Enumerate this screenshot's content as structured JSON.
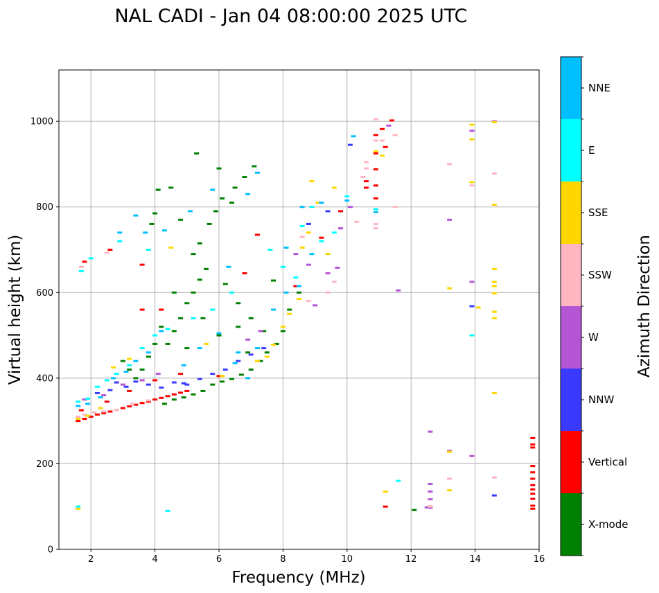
{
  "chart_data": {
    "type": "scatter",
    "title": "NAL CADI - Jan 04 08:00:00 2025 UTC",
    "xlabel": "Frequency (MHz)",
    "ylabel": "Virtual height (km)",
    "xlim": [
      1,
      16
    ],
    "ylim": [
      0,
      1120
    ],
    "xticks": [
      2,
      4,
      6,
      8,
      10,
      12,
      14,
      16
    ],
    "yticks": [
      0,
      200,
      400,
      600,
      800,
      1000
    ],
    "grid": true,
    "colorbar": {
      "label": "Azimuth Direction",
      "categories": [
        {
          "name": "X-mode",
          "color": "#008000"
        },
        {
          "name": "Vertical",
          "color": "#ff0000"
        },
        {
          "name": "NNW",
          "color": "#3a3aff"
        },
        {
          "name": "W",
          "color": "#b455d4"
        },
        {
          "name": "SSW",
          "color": "#ffb6c1"
        },
        {
          "name": "SSE",
          "color": "#ffd700"
        },
        {
          "name": "E",
          "color": "#00ffff"
        },
        {
          "name": "NNE",
          "color": "#00bfff"
        }
      ]
    },
    "series": [
      {
        "name": "Vertical",
        "points": [
          [
            1.6,
            300
          ],
          [
            1.8,
            305
          ],
          [
            2.0,
            310
          ],
          [
            2.2,
            315
          ],
          [
            2.4,
            318
          ],
          [
            2.6,
            322
          ],
          [
            2.8,
            326
          ],
          [
            3.0,
            330
          ],
          [
            3.2,
            334
          ],
          [
            3.4,
            338
          ],
          [
            3.6,
            342
          ],
          [
            3.8,
            345
          ],
          [
            4.0,
            350
          ],
          [
            4.2,
            354
          ],
          [
            4.4,
            358
          ],
          [
            4.6,
            362
          ],
          [
            4.8,
            366
          ],
          [
            5.0,
            370
          ],
          [
            1.7,
            325
          ],
          [
            2.5,
            345
          ],
          [
            3.2,
            370
          ],
          [
            4.0,
            395
          ],
          [
            4.8,
            410
          ],
          [
            6.0,
            405
          ],
          [
            3.6,
            560
          ],
          [
            4.2,
            560
          ],
          [
            1.8,
            672
          ],
          [
            2.6,
            700
          ],
          [
            3.6,
            665
          ],
          [
            6.8,
            645
          ],
          [
            7.2,
            735
          ],
          [
            8.4,
            615
          ],
          [
            9.2,
            728
          ],
          [
            9.8,
            790
          ],
          [
            10.6,
            860
          ],
          [
            10.6,
            845
          ],
          [
            10.9,
            850
          ],
          [
            10.9,
            820
          ],
          [
            10.9,
            888
          ],
          [
            10.9,
            925
          ],
          [
            10.9,
            968
          ],
          [
            11.1,
            982
          ],
          [
            11.4,
            1002
          ],
          [
            15.8,
            260
          ],
          [
            15.8,
            245
          ],
          [
            15.8,
            238
          ],
          [
            15.8,
            195
          ],
          [
            15.8,
            180
          ],
          [
            15.8,
            165
          ],
          [
            15.8,
            150
          ],
          [
            15.8,
            140
          ],
          [
            15.8,
            130
          ],
          [
            15.8,
            118
          ],
          [
            15.8,
            102
          ],
          [
            15.8,
            95
          ],
          [
            11.2,
            100
          ],
          [
            12.6,
            100
          ],
          [
            11.2,
            940
          ]
        ]
      },
      {
        "name": "X-mode",
        "points": [
          [
            4.3,
            340
          ],
          [
            4.6,
            350
          ],
          [
            4.9,
            355
          ],
          [
            5.2,
            362
          ],
          [
            5.5,
            370
          ],
          [
            5.8,
            385
          ],
          [
            6.1,
            392
          ],
          [
            6.4,
            398
          ],
          [
            6.7,
            408
          ],
          [
            7.0,
            420
          ],
          [
            7.3,
            440
          ],
          [
            7.5,
            460
          ],
          [
            7.8,
            480
          ],
          [
            8.0,
            510
          ],
          [
            4.4,
            480
          ],
          [
            4.6,
            510
          ],
          [
            4.8,
            540
          ],
          [
            5.0,
            575
          ],
          [
            5.2,
            600
          ],
          [
            5.4,
            630
          ],
          [
            5.6,
            655
          ],
          [
            5.2,
            690
          ],
          [
            5.4,
            715
          ],
          [
            5.7,
            760
          ],
          [
            5.9,
            790
          ],
          [
            6.1,
            820
          ],
          [
            6.5,
            845
          ],
          [
            6.8,
            870
          ],
          [
            7.1,
            895
          ],
          [
            3.6,
            420
          ],
          [
            3.8,
            450
          ],
          [
            4.0,
            480
          ],
          [
            4.2,
            520
          ],
          [
            3.9,
            760
          ],
          [
            4.0,
            785
          ],
          [
            4.1,
            840
          ],
          [
            4.5,
            845
          ],
          [
            4.8,
            770
          ],
          [
            4.6,
            600
          ],
          [
            5.0,
            470
          ],
          [
            5.5,
            540
          ],
          [
            6.0,
            500
          ],
          [
            6.2,
            620
          ],
          [
            6.6,
            575
          ],
          [
            7.0,
            540
          ],
          [
            7.4,
            510
          ],
          [
            7.7,
            628
          ],
          [
            8.2,
            560
          ],
          [
            8.5,
            600
          ],
          [
            3.0,
            440
          ],
          [
            3.2,
            420
          ],
          [
            3.4,
            400
          ],
          [
            5.3,
            925
          ],
          [
            12.1,
            92
          ],
          [
            6.0,
            890
          ],
          [
            6.4,
            810
          ],
          [
            6.6,
            520
          ],
          [
            6.9,
            460
          ]
        ]
      },
      {
        "name": "NNW",
        "points": [
          [
            2.2,
            365
          ],
          [
            2.6,
            372
          ],
          [
            3.1,
            380
          ],
          [
            3.4,
            392
          ],
          [
            3.8,
            385
          ],
          [
            4.2,
            378
          ],
          [
            4.6,
            390
          ],
          [
            5.0,
            385
          ],
          [
            5.4,
            398
          ],
          [
            5.8,
            410
          ],
          [
            6.2,
            420
          ],
          [
            6.6,
            440
          ],
          [
            7.0,
            455
          ],
          [
            7.4,
            470
          ],
          [
            2.8,
            390
          ],
          [
            8.8,
            760
          ],
          [
            9.4,
            790
          ],
          [
            10.1,
            945
          ],
          [
            13.9,
            568
          ],
          [
            14.6,
            126
          ],
          [
            4.9,
            388
          ]
        ]
      },
      {
        "name": "W",
        "points": [
          [
            1.8,
            350
          ],
          [
            2.4,
            360
          ],
          [
            3.0,
            385
          ],
          [
            3.6,
            395
          ],
          [
            4.1,
            410
          ],
          [
            6.9,
            490
          ],
          [
            7.3,
            510
          ],
          [
            8.4,
            690
          ],
          [
            8.8,
            665
          ],
          [
            9.0,
            570
          ],
          [
            9.4,
            645
          ],
          [
            9.7,
            658
          ],
          [
            9.8,
            750
          ],
          [
            10.1,
            800
          ],
          [
            11.3,
            990
          ],
          [
            12.6,
            275
          ],
          [
            12.6,
            153
          ],
          [
            12.6,
            135
          ],
          [
            12.6,
            117
          ],
          [
            12.6,
            97
          ],
          [
            13.2,
            230
          ],
          [
            13.2,
            770
          ],
          [
            13.9,
            625
          ],
          [
            13.9,
            218
          ],
          [
            13.9,
            978
          ],
          [
            14.6,
            1000
          ],
          [
            11.6,
            605
          ],
          [
            12.5,
            98
          ]
        ]
      },
      {
        "name": "SSW",
        "points": [
          [
            1.6,
            310
          ],
          [
            1.8,
            315
          ],
          [
            2.1,
            320
          ],
          [
            2.4,
            322
          ],
          [
            2.8,
            326
          ],
          [
            3.3,
            340
          ],
          [
            3.8,
            348
          ],
          [
            1.7,
            660
          ],
          [
            2.5,
            693
          ],
          [
            8.6,
            730
          ],
          [
            8.8,
            580
          ],
          [
            9.4,
            600
          ],
          [
            9.6,
            625
          ],
          [
            10.3,
            765
          ],
          [
            10.5,
            870
          ],
          [
            10.6,
            905
          ],
          [
            10.6,
            890
          ],
          [
            10.9,
            760
          ],
          [
            10.9,
            750
          ],
          [
            10.9,
            955
          ],
          [
            11.1,
            955
          ],
          [
            11.5,
            800
          ],
          [
            12.6,
            100
          ],
          [
            13.2,
            900
          ],
          [
            13.2,
            165
          ],
          [
            13.9,
            850
          ],
          [
            14.6,
            878
          ],
          [
            14.6,
            168
          ],
          [
            10.9,
            1005
          ],
          [
            11.5,
            968
          ]
        ]
      },
      {
        "name": "SSE",
        "points": [
          [
            1.6,
            305
          ],
          [
            1.9,
            312
          ],
          [
            2.3,
            330
          ],
          [
            2.7,
            425
          ],
          [
            3.2,
            445
          ],
          [
            6.1,
            405
          ],
          [
            7.2,
            440
          ],
          [
            7.5,
            450
          ],
          [
            7.7,
            478
          ],
          [
            8.0,
            520
          ],
          [
            8.2,
            550
          ],
          [
            8.5,
            585
          ],
          [
            8.6,
            705
          ],
          [
            8.8,
            740
          ],
          [
            8.9,
            860
          ],
          [
            9.1,
            810
          ],
          [
            9.4,
            690
          ],
          [
            9.6,
            845
          ],
          [
            10.9,
            930
          ],
          [
            11.1,
            920
          ],
          [
            11.2,
            135
          ],
          [
            13.2,
            610
          ],
          [
            13.2,
            228
          ],
          [
            13.2,
            138
          ],
          [
            13.9,
            958
          ],
          [
            13.9,
            992
          ],
          [
            13.9,
            858
          ],
          [
            14.1,
            565
          ],
          [
            14.6,
            655
          ],
          [
            14.6,
            625
          ],
          [
            14.6,
            615
          ],
          [
            14.6,
            598
          ],
          [
            14.6,
            555
          ],
          [
            14.6,
            540
          ],
          [
            14.6,
            365
          ],
          [
            14.6,
            805
          ],
          [
            14.6,
            998
          ],
          [
            1.6,
            95
          ],
          [
            4.5,
            705
          ],
          [
            5.6,
            480
          ]
        ]
      },
      {
        "name": "E",
        "points": [
          [
            1.6,
            345
          ],
          [
            1.9,
            352
          ],
          [
            2.2,
            380
          ],
          [
            2.5,
            395
          ],
          [
            2.8,
            410
          ],
          [
            3.2,
            430
          ],
          [
            3.6,
            470
          ],
          [
            4.0,
            500
          ],
          [
            4.4,
            515
          ],
          [
            5.2,
            540
          ],
          [
            5.8,
            560
          ],
          [
            6.4,
            600
          ],
          [
            1.7,
            650
          ],
          [
            2.0,
            680
          ],
          [
            7.6,
            700
          ],
          [
            8.0,
            660
          ],
          [
            8.4,
            635
          ],
          [
            8.6,
            755
          ],
          [
            8.9,
            800
          ],
          [
            9.2,
            720
          ],
          [
            9.6,
            740
          ],
          [
            10.0,
            825
          ],
          [
            10.9,
            795
          ],
          [
            11.6,
            160
          ],
          [
            13.9,
            500
          ],
          [
            4.4,
            90
          ],
          [
            1.6,
            100
          ],
          [
            3.8,
            700
          ],
          [
            2.9,
            720
          ]
        ]
      },
      {
        "name": "NNE",
        "points": [
          [
            1.6,
            335
          ],
          [
            1.9,
            340
          ],
          [
            2.3,
            355
          ],
          [
            2.7,
            400
          ],
          [
            3.1,
            415
          ],
          [
            3.4,
            440
          ],
          [
            3.8,
            460
          ],
          [
            4.2,
            510
          ],
          [
            4.9,
            430
          ],
          [
            5.4,
            470
          ],
          [
            6.0,
            505
          ],
          [
            6.5,
            435
          ],
          [
            6.9,
            400
          ],
          [
            7.2,
            470
          ],
          [
            7.7,
            560
          ],
          [
            8.1,
            600
          ],
          [
            8.1,
            705
          ],
          [
            8.5,
            615
          ],
          [
            8.6,
            800
          ],
          [
            8.9,
            690
          ],
          [
            9.2,
            810
          ],
          [
            10.0,
            815
          ],
          [
            10.2,
            965
          ],
          [
            10.9,
            788
          ],
          [
            3.4,
            780
          ],
          [
            2.9,
            740
          ],
          [
            3.7,
            740
          ],
          [
            4.3,
            745
          ],
          [
            5.1,
            790
          ],
          [
            5.8,
            840
          ],
          [
            6.3,
            660
          ],
          [
            6.9,
            830
          ],
          [
            7.2,
            880
          ],
          [
            6.6,
            460
          ]
        ]
      }
    ]
  }
}
